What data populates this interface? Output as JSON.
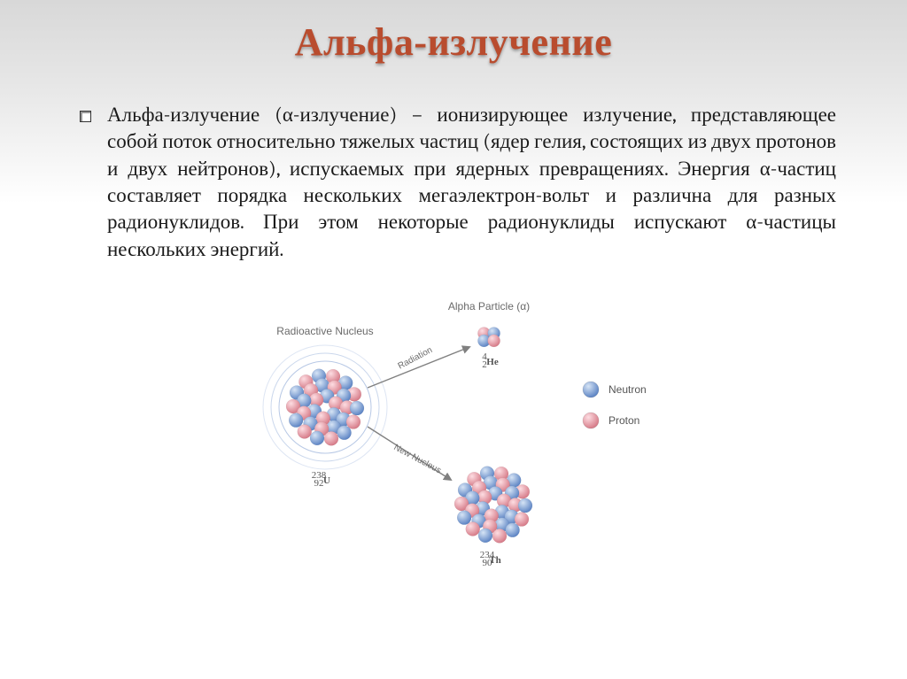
{
  "title": "Альфа-излучение",
  "body": {
    "paragraph": "Альфа-излучение (α-излучение) – ионизирующее излучение, представляющее собой поток относительно тяжелых частиц (ядер гелия, состоящих из двух протонов и двух нейтронов), испускаемых при ядерных превращениях. Энергия α-частиц составляет порядка нескольких мегаэлектрон-вольт и различна для разных радионуклидов. При этом некоторые радионуклиды испускают α-частицы нескольких энергий."
  },
  "figure": {
    "type": "diagram",
    "background_color": "#ffffff",
    "labels": {
      "radioactive": "Radioactive Nucleus",
      "alpha_particle": "Alpha Particle (α)",
      "radiation": "Radiation",
      "new_nucleus": "New Nucleus",
      "parent_formula_top": "238",
      "parent_formula_bot": "92",
      "parent_symbol": "U",
      "daughter_formula_top": "234",
      "daughter_formula_bot": "90",
      "daughter_symbol": "Th",
      "alpha_formula_top": "4",
      "alpha_formula_bot": "2",
      "alpha_symbol": "He"
    },
    "legend": {
      "neutron": "Neutron",
      "proton": "Proton"
    },
    "colors": {
      "proton_light": "#fddde2",
      "proton_dark": "#d77d8a",
      "neutron_light": "#d6e4f5",
      "neutron_dark": "#5f86c5",
      "arrow": "#808080",
      "ring": "#5f86c5"
    },
    "particle_radius": 8,
    "alpha_radius": 7,
    "legend_radius": 9,
    "arrow_width": 1.4
  }
}
